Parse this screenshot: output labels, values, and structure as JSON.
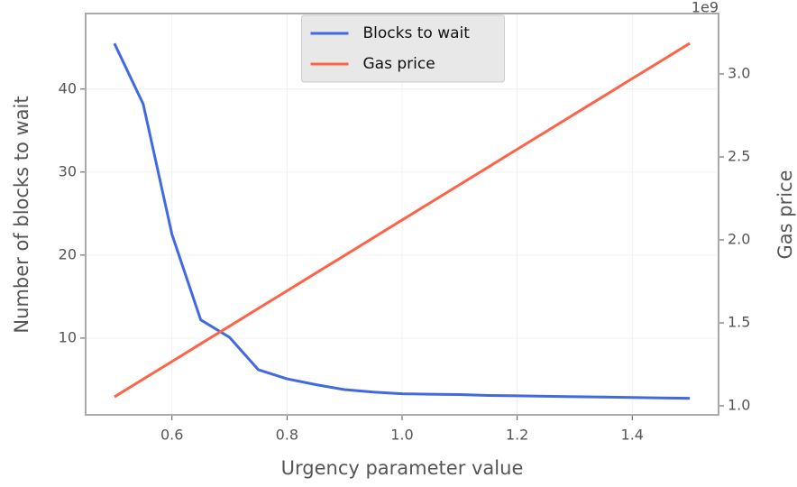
{
  "chart_data": {
    "type": "line",
    "x_label": "Urgency parameter value",
    "y_label": "Number of blocks to wait",
    "y2_label": "Gas price",
    "y2_offset_label": "1e9",
    "x": [
      0.5,
      0.55,
      0.6,
      0.65,
      0.7,
      0.75,
      0.8,
      0.85,
      0.9,
      0.95,
      1.0,
      1.05,
      1.1,
      1.15,
      1.2,
      1.25,
      1.3,
      1.35,
      1.4,
      1.45,
      1.5
    ],
    "series": [
      {
        "name": "Blocks to wait",
        "color": "#4169e1",
        "axis": "y",
        "values": [
          45.5,
          38.2,
          22.5,
          12.2,
          10.1,
          6.2,
          5.1,
          4.4,
          3.8,
          3.5,
          3.3,
          3.25,
          3.2,
          3.1,
          3.05,
          3.0,
          2.95,
          2.9,
          2.85,
          2.8,
          2.75
        ]
      },
      {
        "name": "Gas price",
        "color": "#ff6347",
        "axis": "y2",
        "values": [
          1.054,
          1.161,
          1.267,
          1.374,
          1.48,
          1.587,
          1.693,
          1.8,
          1.906,
          2.013,
          2.12,
          2.226,
          2.333,
          2.439,
          2.546,
          2.652,
          2.759,
          2.865,
          2.972,
          3.078,
          3.185
        ]
      }
    ],
    "xlim": [
      0.45,
      1.55
    ],
    "xticks": [
      0.6,
      0.8,
      {
        "value": 1.0,
        "label": "1.0"
      },
      1.2,
      1.4
    ],
    "ylim": [
      0.76,
      49.1
    ],
    "yticks": [
      10,
      20,
      30,
      40
    ],
    "y2lim": [
      0.9457,
      3.364
    ],
    "y2ticks": [
      {
        "value": 1.0,
        "label": "1.0"
      },
      1.5,
      {
        "value": 2.0,
        "label": "2.0"
      },
      2.5,
      {
        "value": 3.0,
        "label": "3.0"
      }
    ],
    "grid": true,
    "legend": "upper center"
  }
}
